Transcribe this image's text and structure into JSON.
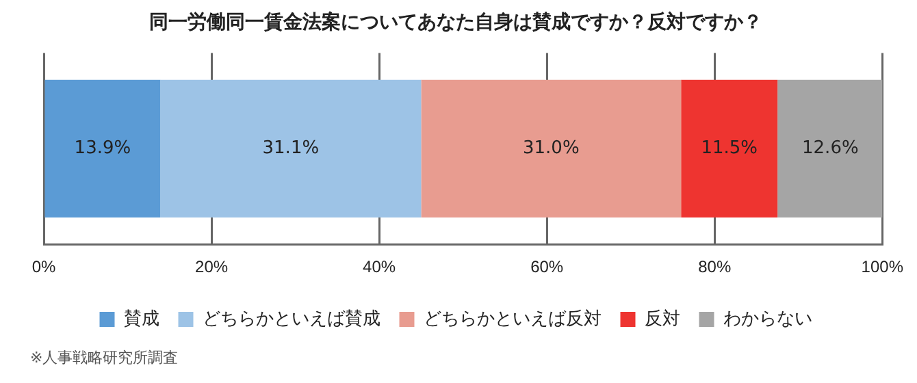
{
  "chart_data": {
    "type": "bar",
    "orientation": "horizontal",
    "stacked": true,
    "title": "同一労働同一賃金法案についてあなた自身は賛成ですか？反対ですか？",
    "categories": [
      null
    ],
    "series": [
      {
        "name": "賛成",
        "color": "#5b9bd5",
        "values": [
          13.9
        ],
        "value_labels": [
          "13.9%"
        ]
      },
      {
        "name": "どちらかといえば賛成",
        "color": "#9dc3e6",
        "values": [
          31.1
        ],
        "value_labels": [
          "31.1%"
        ]
      },
      {
        "name": "どちらかといえば反対",
        "color": "#e89c90",
        "values": [
          31.0
        ],
        "value_labels": [
          "31.0%"
        ]
      },
      {
        "name": "反対",
        "color": "#ee3430",
        "values": [
          11.5
        ],
        "value_labels": [
          "11.5%"
        ]
      },
      {
        "name": "わからない",
        "color": "#a5a5a5",
        "values": [
          12.6
        ],
        "value_labels": [
          "12.6%"
        ]
      }
    ],
    "xlim": [
      0,
      100
    ],
    "xticks": [
      {
        "value": 0,
        "label": "0%"
      },
      {
        "value": 20,
        "label": "20%"
      },
      {
        "value": 40,
        "label": "40%"
      },
      {
        "value": 60,
        "label": "60%"
      },
      {
        "value": 80,
        "label": "80%"
      },
      {
        "value": 100,
        "label": "100%"
      }
    ],
    "grid": "x",
    "legend": "bottom",
    "annotations": [
      "※人事戦略研究所調査"
    ]
  }
}
